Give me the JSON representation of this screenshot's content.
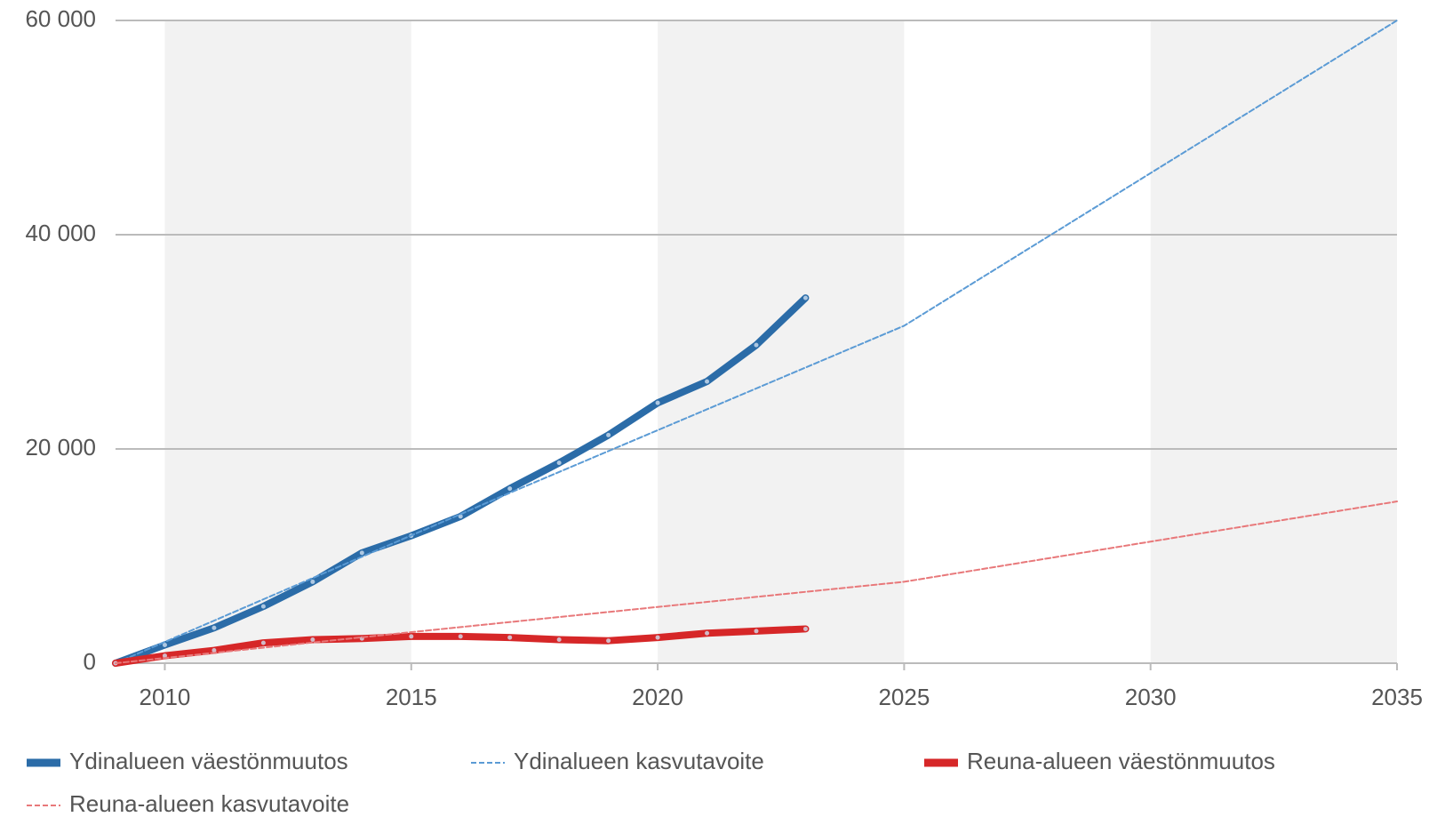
{
  "chart_data": {
    "type": "line",
    "xlim": [
      2009,
      2035
    ],
    "xticks": [
      2010,
      2015,
      2020,
      2025,
      2030,
      2035
    ],
    "ylim": [
      0,
      60000
    ],
    "yticks": [
      0,
      {
        "value": 20000,
        "label": "20 000"
      },
      {
        "value": 40000,
        "label": "40 000"
      },
      {
        "value": 60000,
        "label": "60 000"
      }
    ],
    "grid": true,
    "legend": "bottom",
    "series": [
      {
        "name": "Ydinalueen väestönmuutos",
        "color": "#2b6ca8",
        "style": "solid",
        "x": [
          2009,
          2010,
          2011,
          2012,
          2013,
          2014,
          2015,
          2016,
          2017,
          2018,
          2019,
          2020,
          2021,
          2022,
          2023
        ],
        "values": [
          0,
          1700,
          3300,
          5300,
          7600,
          10300,
          11900,
          13700,
          16300,
          18700,
          21300,
          24300,
          26300,
          29700,
          34100
        ]
      },
      {
        "name": "Ydinalueen kasvutavoite",
        "color": "#5b9bd5",
        "style": "dashed",
        "x": [
          2009,
          2017,
          2025,
          2035
        ],
        "values": [
          0,
          15900,
          31500,
          60000
        ]
      },
      {
        "name": "Reuna-alueen väestönmuutos",
        "color": "#d62728",
        "style": "solid",
        "x": [
          2009,
          2010,
          2011,
          2012,
          2013,
          2014,
          2015,
          2016,
          2017,
          2018,
          2019,
          2020,
          2021,
          2022,
          2023
        ],
        "values": [
          0,
          700,
          1200,
          1900,
          2200,
          2300,
          2500,
          2500,
          2400,
          2200,
          2100,
          2400,
          2800,
          3000,
          3200
        ]
      },
      {
        "name": "Reuna-alueen kasvutavoite",
        "color": "#e8787a",
        "style": "dashed",
        "x": [
          2009,
          2015,
          2025,
          2035
        ],
        "values": [
          0,
          2900,
          7600,
          15100
        ]
      }
    ]
  }
}
